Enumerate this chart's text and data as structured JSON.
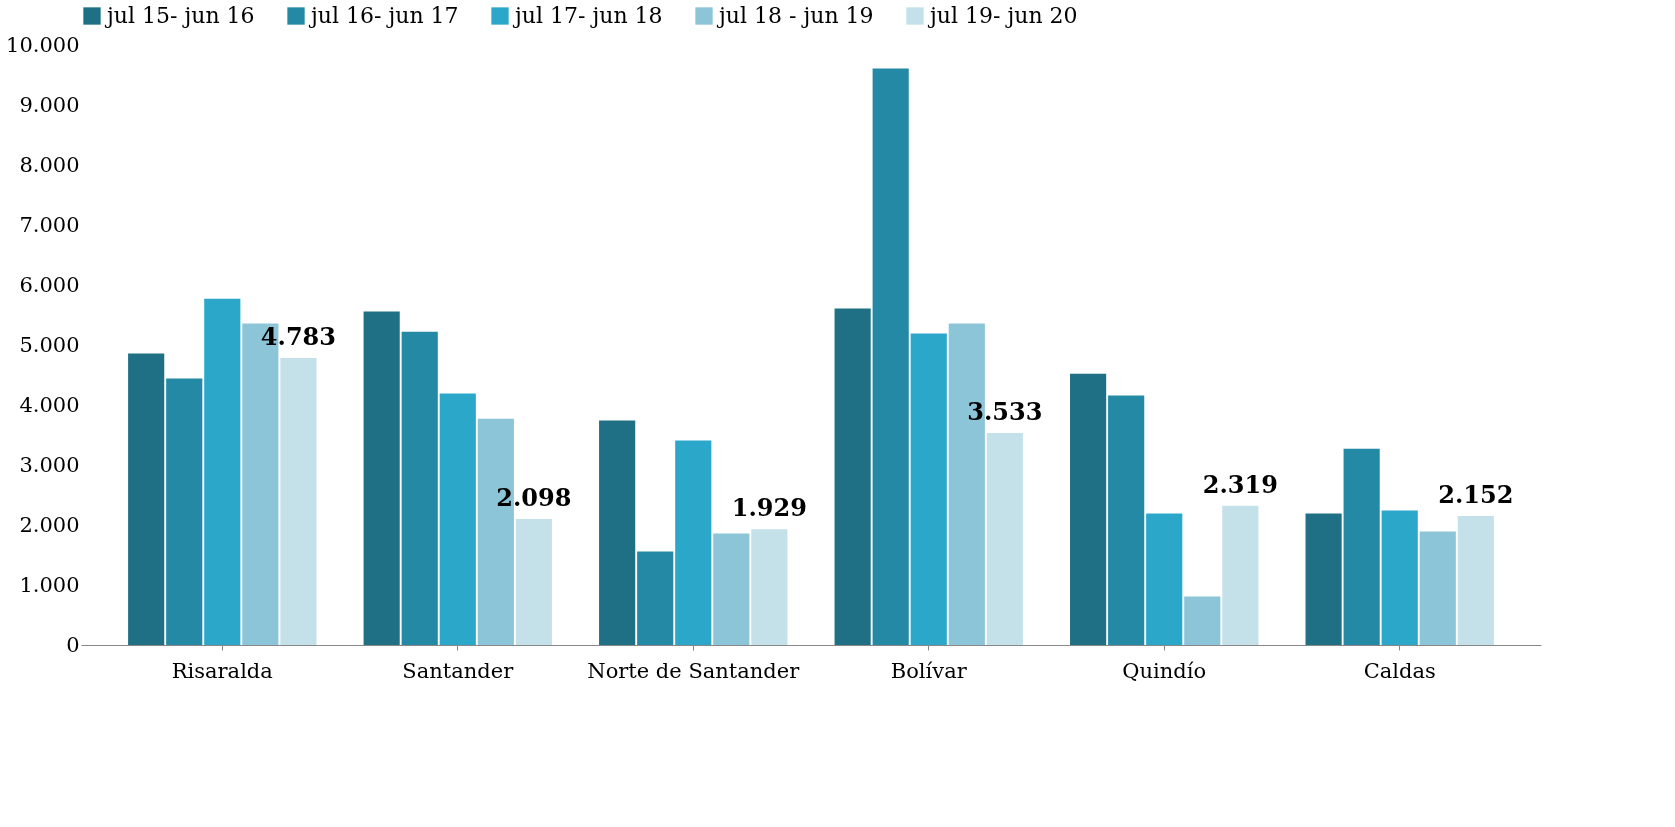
{
  "chart_data": {
    "type": "bar",
    "categories": [
      "Risaralda",
      "Santander",
      "Norte de Santander",
      "Bolívar",
      "Quindío",
      "Caldas"
    ],
    "series": [
      {
        "name": "jul 15- jun 16",
        "color": "#1f7085",
        "values": [
          4860,
          5560,
          3740,
          5610,
          4520,
          2190
        ]
      },
      {
        "name": "jul 16- jun 17",
        "color": "#2389a5",
        "values": [
          4440,
          5220,
          1560,
          9610,
          4160,
          3270
        ]
      },
      {
        "name": "jul 17- jun 18",
        "color": "#2aa7c9",
        "values": [
          5770,
          4190,
          3410,
          5190,
          2190,
          2240
        ]
      },
      {
        "name": "jul 18 - jun 19",
        "color": "#8cc4d8",
        "values": [
          5360,
          3770,
          1860,
          5360,
          810,
          1890
        ]
      },
      {
        "name": "jul 19- jun 20",
        "color": "#c4e1ea",
        "values": [
          4783,
          2098,
          1929,
          3533,
          2319,
          2152
        ],
        "value_labels": [
          "4.783",
          "2.098",
          "1.929",
          "3.533",
          "2.319",
          "2.152"
        ]
      }
    ],
    "ylim": [
      0,
      10000
    ],
    "yticks": [
      0,
      {
        "value": 1000,
        "label": "1.000"
      },
      {
        "value": 2000,
        "label": "2.000"
      },
      {
        "value": 3000,
        "label": "3.000"
      },
      {
        "value": 4000,
        "label": "4.000"
      },
      {
        "value": 5000,
        "label": "5.000"
      },
      {
        "value": 6000,
        "label": "6.000"
      },
      {
        "value": 7000,
        "label": "7.000"
      },
      {
        "value": 8000,
        "label": "8.000"
      },
      {
        "value": 9000,
        "label": "9.000"
      },
      {
        "value": 10000,
        "label": "10.000"
      }
    ],
    "grid": false,
    "legend": "top"
  }
}
